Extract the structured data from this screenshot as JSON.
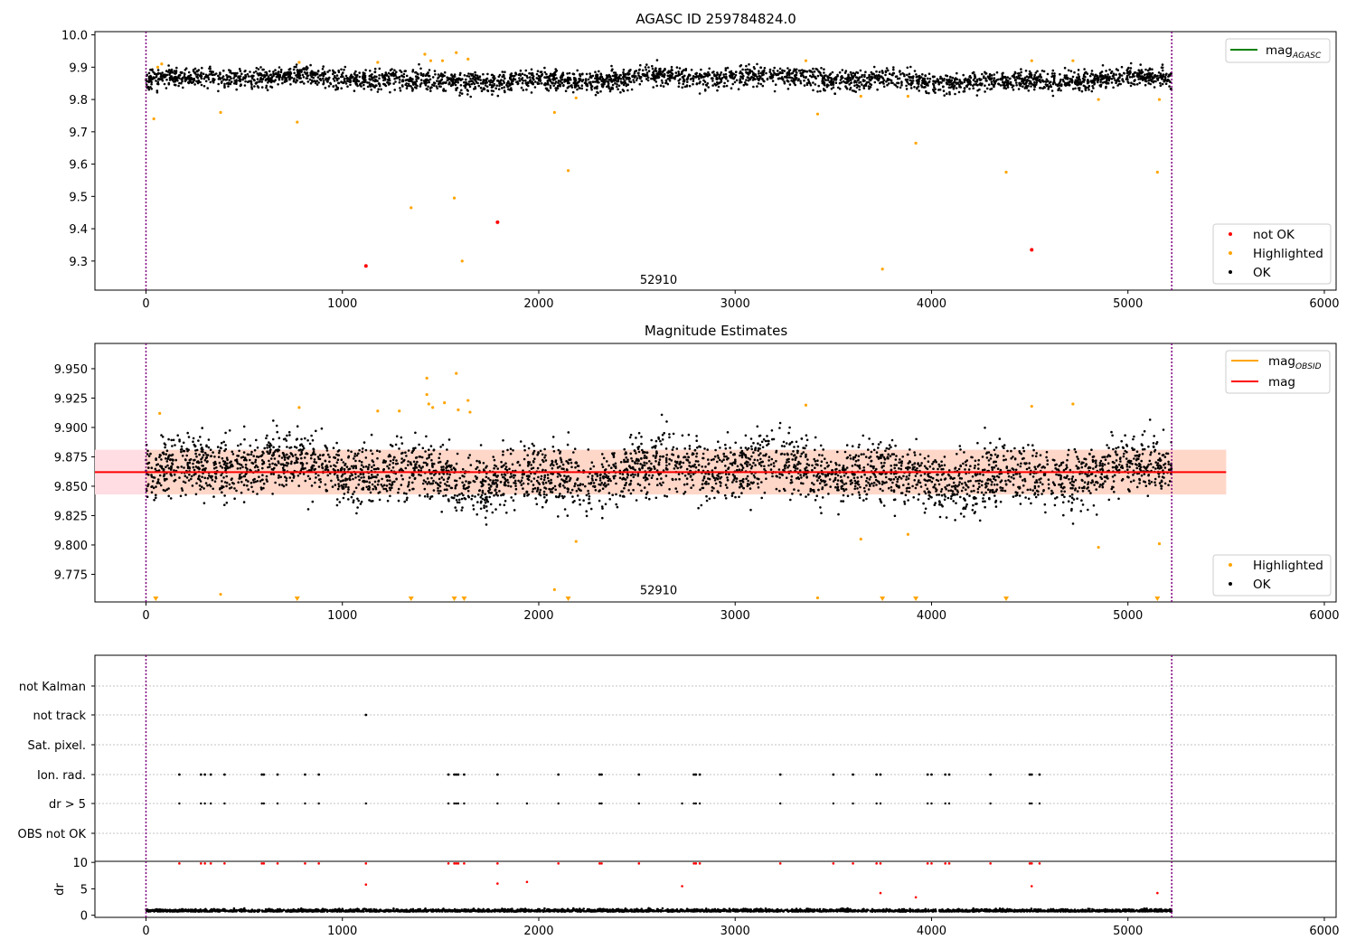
{
  "colors": {
    "ok": "#000000",
    "highlighted": "#ffa500",
    "not_ok": "#ff0000",
    "agasc_line": "#008000",
    "obsid_line": "#ffa500",
    "mag_line": "#ff0000",
    "band": "#ffcccc",
    "vline": "#800080",
    "grid": "#b0b0b0"
  },
  "chart_data": [
    {
      "type": "scatter",
      "title": "AGASC ID 259784824.0",
      "xlim": [
        -260,
        6060
      ],
      "ylim": [
        9.21,
        10.01
      ],
      "xticks": [
        0,
        1000,
        2000,
        3000,
        4000,
        5000,
        6000
      ],
      "yticks": [
        9.3,
        9.4,
        9.5,
        9.6,
        9.7,
        9.8,
        9.9,
        10.0
      ],
      "ytick_labels": [
        "9.3",
        "9.4",
        "9.5",
        "9.6",
        "9.7",
        "9.8",
        "9.9",
        "10.0"
      ],
      "vlines": [
        0,
        5223
      ],
      "obsid_label": {
        "text": "52910",
        "x": 2610,
        "y": 9.23
      },
      "line_legend": {
        "label": "mag",
        "subscript": "AGASC",
        "color": "green",
        "position": "upper right"
      },
      "marker_legend": {
        "entries": [
          "not OK",
          "Highlighted",
          "OK"
        ],
        "position": "lower right"
      },
      "ok_band": {
        "center": 9.863,
        "spread": 0.022,
        "n_points": 3200
      },
      "highlighted": [
        [
          40,
          9.74
        ],
        [
          60,
          9.9
        ],
        [
          80,
          9.91
        ],
        [
          380,
          9.76
        ],
        [
          770,
          9.73
        ],
        [
          780,
          9.915
        ],
        [
          1180,
          9.915
        ],
        [
          1350,
          9.465
        ],
        [
          1420,
          9.94
        ],
        [
          1450,
          9.92
        ],
        [
          1510,
          9.92
        ],
        [
          1570,
          9.495
        ],
        [
          1580,
          9.945
        ],
        [
          1610,
          9.3
        ],
        [
          1640,
          9.925
        ],
        [
          2080,
          9.76
        ],
        [
          2150,
          9.58
        ],
        [
          2190,
          9.805
        ],
        [
          3360,
          9.92
        ],
        [
          3420,
          9.755
        ],
        [
          3640,
          9.81
        ],
        [
          3750,
          9.275
        ],
        [
          3880,
          9.81
        ],
        [
          3920,
          9.665
        ],
        [
          4380,
          9.575
        ],
        [
          4510,
          9.92
        ],
        [
          4720,
          9.92
        ],
        [
          4850,
          9.8
        ],
        [
          5150,
          9.575
        ],
        [
          5160,
          9.8
        ]
      ],
      "not_ok": [
        [
          1120,
          9.285
        ],
        [
          1790,
          9.42
        ],
        [
          4510,
          9.335
        ]
      ]
    },
    {
      "type": "scatter",
      "title": "Magnitude Estimates",
      "xlim": [
        -260,
        6060
      ],
      "ylim": [
        9.7515,
        9.9715
      ],
      "xticks": [
        0,
        1000,
        2000,
        3000,
        4000,
        5000,
        6000
      ],
      "yticks": [
        9.775,
        9.8,
        9.825,
        9.85,
        9.875,
        9.9,
        9.925,
        9.95
      ],
      "ytick_labels": [
        "9.775",
        "9.800",
        "9.825",
        "9.850",
        "9.875",
        "9.900",
        "9.925",
        "9.950"
      ],
      "vlines": [
        0,
        5223
      ],
      "obsid_label": {
        "text": "52910",
        "x": 2610,
        "y": 9.758
      },
      "mag": 9.862,
      "mag_band": [
        9.843,
        9.881
      ],
      "mag_line_x": [
        -260,
        5500
      ],
      "obsid_band_x": [
        0,
        5500
      ],
      "line_legend": [
        {
          "label": "mag",
          "subscript": "OBSID",
          "color": "orange"
        },
        {
          "label": "mag",
          "subscript": "",
          "color": "red"
        }
      ],
      "marker_legend": {
        "entries": [
          "Highlighted",
          "OK"
        ],
        "position": "lower right"
      },
      "ok_band": {
        "center": 9.862,
        "spread": 0.018,
        "n_points": 3600
      },
      "highlighted": [
        [
          70,
          9.912
        ],
        [
          780,
          9.917
        ],
        [
          1180,
          9.914
        ],
        [
          1290,
          9.914
        ],
        [
          1430,
          9.942
        ],
        [
          1430,
          9.928
        ],
        [
          1440,
          9.92
        ],
        [
          1460,
          9.917
        ],
        [
          1520,
          9.921
        ],
        [
          1580,
          9.946
        ],
        [
          1590,
          9.915
        ],
        [
          1640,
          9.923
        ],
        [
          1650,
          9.913
        ],
        [
          2190,
          9.803
        ],
        [
          2080,
          9.762
        ],
        [
          3360,
          9.919
        ],
        [
          3640,
          9.805
        ],
        [
          3880,
          9.809
        ],
        [
          4510,
          9.918
        ],
        [
          4720,
          9.92
        ],
        [
          4850,
          9.798
        ],
        [
          5160,
          9.801
        ],
        [
          380,
          9.758
        ],
        [
          3420,
          9.755
        ]
      ],
      "below_axis_markers": [
        50,
        770,
        1350,
        1570,
        1620,
        2150,
        3750,
        3920,
        4380,
        5150
      ]
    },
    {
      "type": "scatter",
      "title": "",
      "xlim": [
        -260,
        6060
      ],
      "categories": [
        "not Kalman",
        "not track",
        "Sat. pixel.",
        "Ion. rad.",
        "dr > 5",
        "OBS not OK"
      ],
      "not_track_x": [
        1120
      ],
      "ion_rad_x": [
        170,
        280,
        300,
        330,
        400,
        590,
        600,
        670,
        810,
        880,
        1540,
        1570,
        1580,
        1590,
        1620,
        1790,
        2100,
        2310,
        2320,
        2510,
        2790,
        2800,
        2820,
        3230,
        3500,
        3600,
        3720,
        3740,
        3980,
        4000,
        4070,
        4090,
        4300,
        4500,
        4510,
        4550
      ],
      "dr5_x": [
        170,
        280,
        300,
        330,
        400,
        590,
        600,
        670,
        810,
        880,
        1120,
        1540,
        1570,
        1580,
        1590,
        1620,
        1790,
        1940,
        2100,
        2310,
        2320,
        2510,
        2730,
        2790,
        2800,
        2820,
        3230,
        3500,
        3600,
        3720,
        3740,
        3980,
        4000,
        4070,
        4090,
        4300,
        4500,
        4510,
        4550
      ]
    },
    {
      "type": "scatter",
      "title": "",
      "ylabel": "dr",
      "xlim": [
        -260,
        6060
      ],
      "ylim": [
        -0.4,
        10.2
      ],
      "xticks": [
        0,
        1000,
        2000,
        3000,
        4000,
        5000,
        6000
      ],
      "yticks": [
        0,
        5,
        10
      ],
      "ytick_labels": [
        "0",
        "5",
        "10"
      ],
      "vlines": [
        0,
        5223
      ],
      "ok_band": {
        "center": 0.7,
        "spread": 0.3,
        "n_points": 3000
      },
      "red_points": [
        [
          170,
          9.8
        ],
        [
          280,
          9.8
        ],
        [
          300,
          9.8
        ],
        [
          330,
          9.8
        ],
        [
          400,
          9.8
        ],
        [
          590,
          9.8
        ],
        [
          600,
          9.8
        ],
        [
          670,
          9.8
        ],
        [
          810,
          9.8
        ],
        [
          880,
          9.8
        ],
        [
          1120,
          9.8
        ],
        [
          1540,
          9.8
        ],
        [
          1570,
          9.8
        ],
        [
          1580,
          9.8
        ],
        [
          1590,
          9.8
        ],
        [
          1620,
          9.8
        ],
        [
          1790,
          9.8
        ],
        [
          2100,
          9.8
        ],
        [
          2310,
          9.8
        ],
        [
          2320,
          9.8
        ],
        [
          2510,
          9.8
        ],
        [
          2790,
          9.8
        ],
        [
          2800,
          9.8
        ],
        [
          2820,
          9.8
        ],
        [
          3230,
          9.8
        ],
        [
          3500,
          9.8
        ],
        [
          3600,
          9.8
        ],
        [
          3720,
          9.8
        ],
        [
          3740,
          9.8
        ],
        [
          3980,
          9.8
        ],
        [
          4000,
          9.8
        ],
        [
          4070,
          9.8
        ],
        [
          4090,
          9.8
        ],
        [
          4300,
          9.8
        ],
        [
          4500,
          9.8
        ],
        [
          4510,
          9.8
        ],
        [
          4550,
          9.8
        ],
        [
          1120,
          5.8
        ],
        [
          1790,
          6.0
        ],
        [
          1940,
          6.3
        ],
        [
          2730,
          5.5
        ],
        [
          4510,
          5.5
        ],
        [
          3740,
          4.2
        ],
        [
          3920,
          3.4
        ],
        [
          5150,
          4.2
        ]
      ]
    }
  ]
}
